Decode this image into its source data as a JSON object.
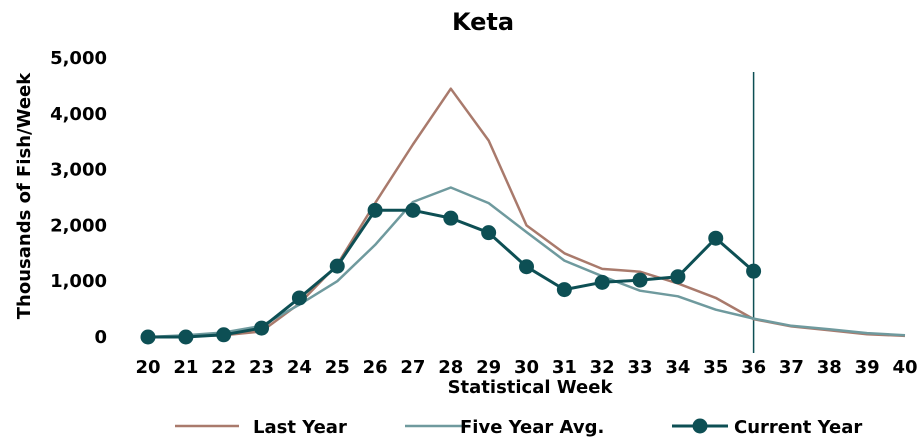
{
  "chart_data": {
    "type": "line",
    "title": "Keta",
    "xlabel": "Statistical Week",
    "ylabel": "Thousands of Fish/Week",
    "x": [
      20,
      21,
      22,
      23,
      24,
      25,
      26,
      27,
      28,
      29,
      30,
      31,
      32,
      33,
      34,
      35,
      36,
      37,
      38,
      39,
      40
    ],
    "x_tick_labels": [
      "20",
      "21",
      "22",
      "23",
      "24",
      "25",
      "26",
      "27",
      "28",
      "29",
      "30",
      "31",
      "32",
      "33",
      "34",
      "35",
      "36",
      "37",
      "38",
      "39",
      "40"
    ],
    "ylim": [
      0,
      5000
    ],
    "y_tick_labels": [
      "0",
      "1,000",
      "2,000",
      "3,000",
      "4,000",
      "5,000"
    ],
    "y_ticks": [
      0,
      1000,
      2000,
      3000,
      4000,
      5000
    ],
    "grid": false,
    "legend_position": "bottom",
    "current_week_marker": 36,
    "series": [
      {
        "name": "Last Year",
        "color": "#a97a6c",
        "markers": false,
        "values": [
          0,
          10,
          30,
          100,
          600,
          1300,
          2400,
          3450,
          4450,
          3520,
          2000,
          1500,
          1220,
          1170,
          960,
          700,
          320,
          190,
          120,
          50,
          20
        ]
      },
      {
        "name": "Five Year Avg.",
        "color": "#6f9a9e",
        "markers": false,
        "values": [
          0,
          30,
          80,
          200,
          580,
          1000,
          1650,
          2420,
          2680,
          2400,
          1880,
          1370,
          1090,
          830,
          730,
          490,
          330,
          200,
          140,
          70,
          30
        ]
      },
      {
        "name": "Current Year",
        "color": "#0d4f54",
        "markers": true,
        "values": [
          0,
          0,
          40,
          160,
          700,
          1270,
          2270,
          2270,
          2130,
          1870,
          1260,
          850,
          980,
          1020,
          1080,
          1770,
          1180,
          null,
          null,
          null,
          null
        ]
      }
    ]
  }
}
